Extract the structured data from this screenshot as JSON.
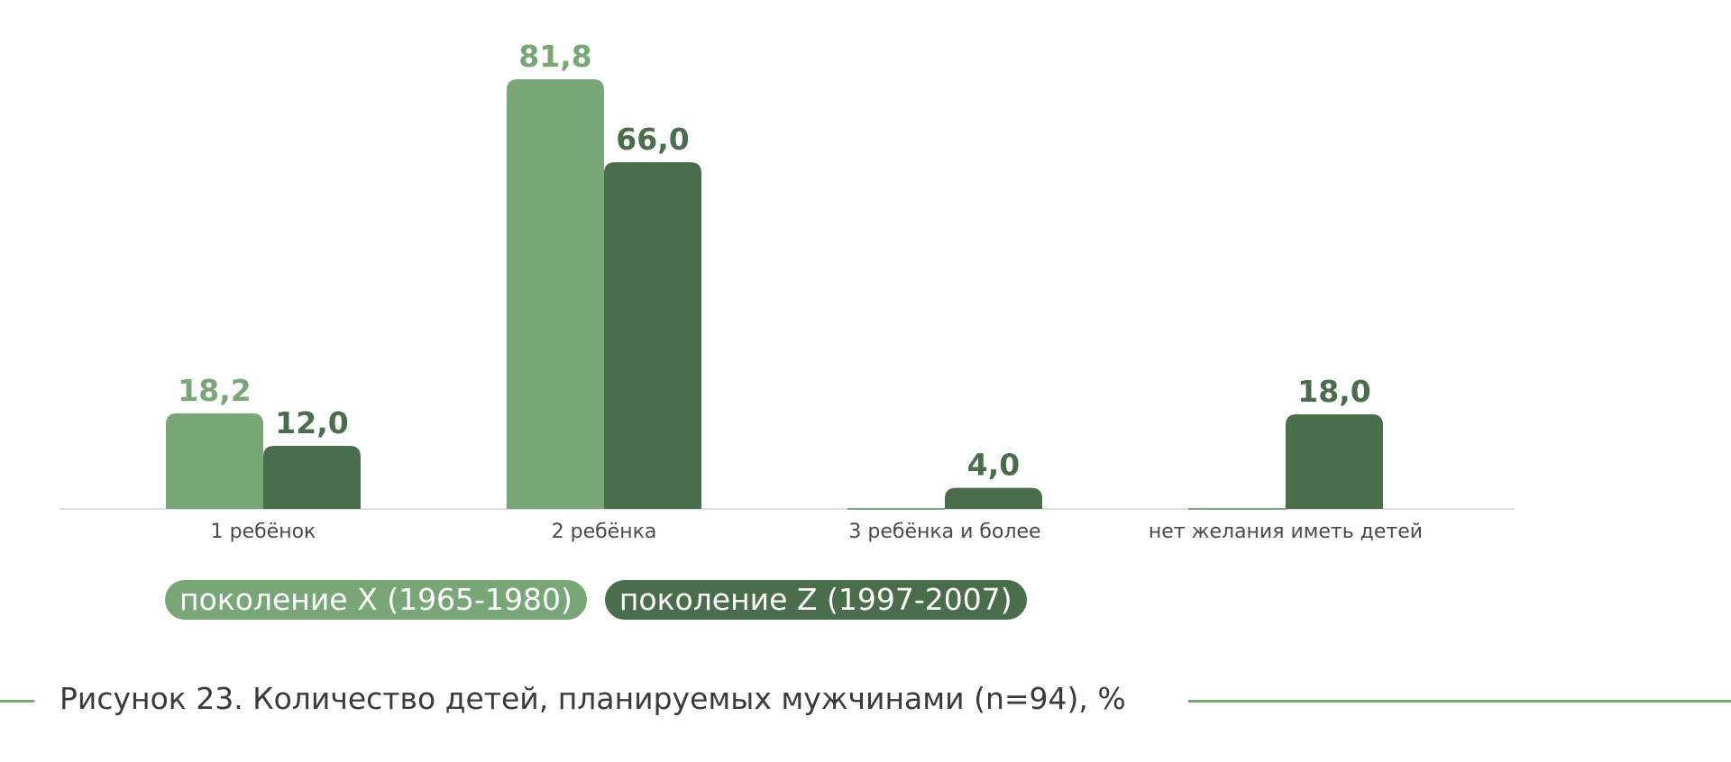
{
  "chart_data": {
    "type": "bar",
    "categories": [
      "1 ребёнок",
      "2 ребёнка",
      "3 ребёнка и более",
      "нет желания иметь детей"
    ],
    "series": [
      {
        "name": "поколение X (1965-1980)",
        "values": [
          18.2,
          81.8,
          0,
          0
        ],
        "labels": [
          "18,2",
          "81,8",
          "",
          ""
        ],
        "color": "#79a677"
      },
      {
        "name": "поколение Z (1997-2007)",
        "values": [
          12.0,
          66.0,
          4.0,
          18.0
        ],
        "labels": [
          "12,0",
          "66,0",
          "4,0",
          "18,0"
        ],
        "color": "#4a6e4b"
      }
    ],
    "ylim": [
      0,
      81.8
    ],
    "grid": false,
    "legend_position": "bottom-left"
  },
  "legend": {
    "x_label": "поколение X (1965-1980)",
    "z_label": "поколение Z (1997-2007)"
  },
  "caption": "Рисунок 23. Количество детей, планируемых мужчинами (n=94), %",
  "colors": {
    "accent_light": "#79a677",
    "accent_dark": "#4a6e4b",
    "baseline": "#dddddd"
  }
}
